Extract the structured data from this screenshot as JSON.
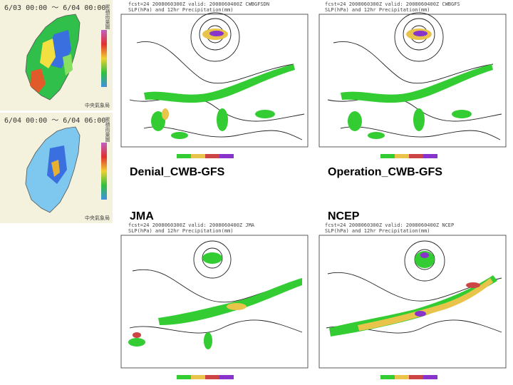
{
  "observations": [
    {
      "time_range": "6/03 00:00 ～ 6/04 00:00",
      "side_text": "累積雨量圖",
      "footer": "中央氣象局"
    },
    {
      "time_range": "6/04 00:00 ～ 6/04 06:00",
      "side_text": "累積雨量圖",
      "footer": "中央氣象局"
    }
  ],
  "labels": {
    "top_left": "Denial_CWB-GFS",
    "top_right": "Operation_CWB-GFS",
    "bottom_left": "JMA",
    "bottom_right": "NCEP"
  },
  "panels": [
    {
      "header1": "fcst=24 2008060300Z valid: 2008060400Z CWBGFSDN",
      "header2": "SLP(hPa) and 12hr Precipitation(mm)"
    },
    {
      "header1": "fcst=24 2008060300Z valid: 2008060400Z CWBGFS",
      "header2": "SLP(hPa) and 12hr Precipitation(mm)"
    },
    {
      "header1": "fcst=24 2008060300Z valid: 2008060400Z JMA",
      "header2": "SLP(hPa) and 12hr Precipitation(mm)"
    },
    {
      "header1": "fcst=24 2008060300Z valid: 2008060400Z NCEP",
      "header2": "SLP(hPa) and 12hr Precipitation(mm)"
    }
  ],
  "colors": {
    "precip_light": "#33cc33",
    "precip_mid": "#e8c44a",
    "precip_heavy": "#cc4444",
    "precip_extreme": "#8833cc",
    "contour": "#222222"
  }
}
